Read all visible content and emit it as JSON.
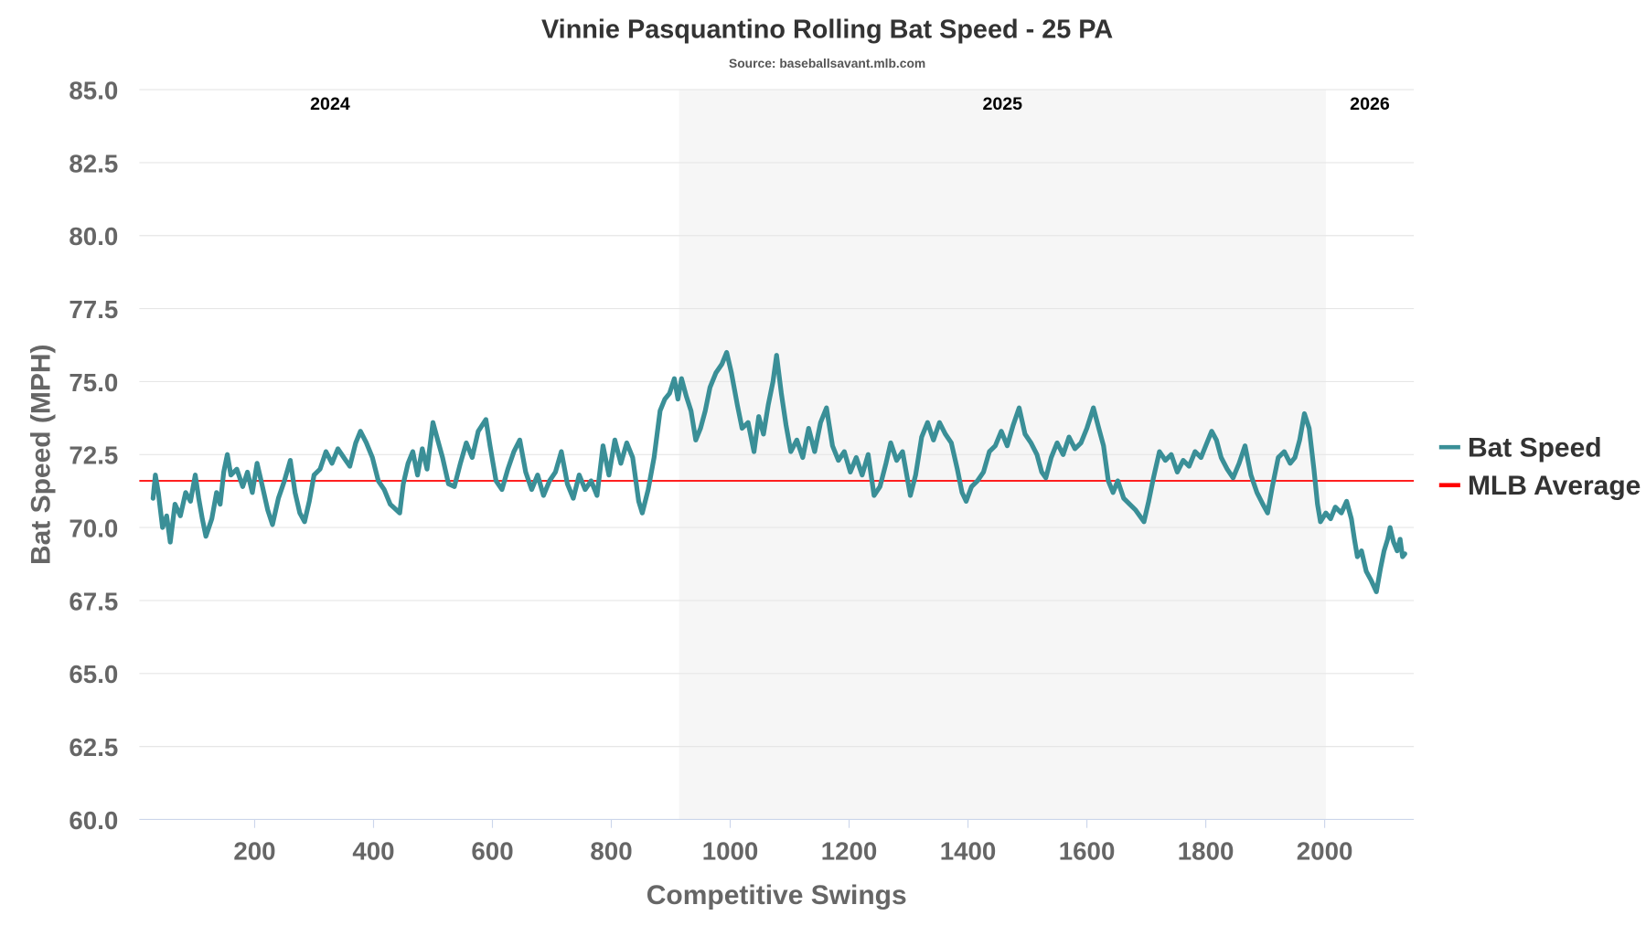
{
  "chart_data": {
    "type": "line",
    "title": "Vinnie Pasquantino Rolling Bat Speed - 25 PA",
    "subtitle": "Source: baseballsavant.mlb.com",
    "xlabel": "Competitive Swings",
    "ylabel": "Bat Speed (MPH)",
    "xlim": [
      6,
      2150
    ],
    "ylim": [
      60,
      85
    ],
    "xticks": [
      200,
      400,
      600,
      800,
      1000,
      1200,
      1400,
      1600,
      1800,
      2000
    ],
    "yticks": [
      "60.0",
      "62.5",
      "65.0",
      "67.5",
      "70.0",
      "72.5",
      "75.0",
      "77.5",
      "80.0",
      "82.5",
      "85.0"
    ],
    "grid": true,
    "legend_position": "right",
    "seasons": [
      {
        "label": "2024",
        "start": 6,
        "end": 914,
        "shaded": false
      },
      {
        "label": "2025",
        "start": 914,
        "end": 2002,
        "shaded": true
      },
      {
        "label": "2026",
        "start": 2002,
        "end": 2150,
        "shaded": false
      }
    ],
    "reference_line": {
      "name": "MLB Average",
      "value": 71.6,
      "color": "#ff0000"
    },
    "series": [
      {
        "name": "Bat Speed",
        "color": "#3a8f97",
        "points": [
          [
            29,
            71.0
          ],
          [
            33,
            71.8
          ],
          [
            38,
            71.2
          ],
          [
            45,
            70.0
          ],
          [
            52,
            70.4
          ],
          [
            58,
            69.5
          ],
          [
            66,
            70.8
          ],
          [
            75,
            70.4
          ],
          [
            84,
            71.2
          ],
          [
            92,
            70.9
          ],
          [
            100,
            71.8
          ],
          [
            106,
            71.0
          ],
          [
            112,
            70.3
          ],
          [
            118,
            69.7
          ],
          [
            128,
            70.3
          ],
          [
            136,
            71.2
          ],
          [
            142,
            70.8
          ],
          [
            148,
            71.9
          ],
          [
            154,
            72.5
          ],
          [
            160,
            71.8
          ],
          [
            170,
            72.0
          ],
          [
            180,
            71.4
          ],
          [
            188,
            71.9
          ],
          [
            196,
            71.2
          ],
          [
            204,
            72.2
          ],
          [
            212,
            71.5
          ],
          [
            222,
            70.6
          ],
          [
            230,
            70.1
          ],
          [
            240,
            71.0
          ],
          [
            250,
            71.6
          ],
          [
            260,
            72.3
          ],
          [
            268,
            71.2
          ],
          [
            276,
            70.5
          ],
          [
            284,
            70.2
          ],
          [
            292,
            70.9
          ],
          [
            300,
            71.8
          ],
          [
            310,
            72.0
          ],
          [
            320,
            72.6
          ],
          [
            330,
            72.2
          ],
          [
            340,
            72.7
          ],
          [
            350,
            72.4
          ],
          [
            360,
            72.1
          ],
          [
            370,
            72.9
          ],
          [
            378,
            73.3
          ],
          [
            388,
            72.9
          ],
          [
            398,
            72.4
          ],
          [
            408,
            71.6
          ],
          [
            418,
            71.3
          ],
          [
            428,
            70.8
          ],
          [
            444,
            70.5
          ],
          [
            450,
            71.5
          ],
          [
            458,
            72.2
          ],
          [
            466,
            72.6
          ],
          [
            474,
            71.8
          ],
          [
            482,
            72.7
          ],
          [
            490,
            72.0
          ],
          [
            500,
            73.6
          ],
          [
            508,
            73.0
          ],
          [
            516,
            72.4
          ],
          [
            526,
            71.5
          ],
          [
            536,
            71.4
          ],
          [
            546,
            72.2
          ],
          [
            556,
            72.9
          ],
          [
            566,
            72.4
          ],
          [
            576,
            73.3
          ],
          [
            589,
            73.7
          ],
          [
            596,
            72.8
          ],
          [
            606,
            71.6
          ],
          [
            616,
            71.3
          ],
          [
            626,
            72.0
          ],
          [
            636,
            72.6
          ],
          [
            646,
            73.0
          ],
          [
            656,
            71.9
          ],
          [
            666,
            71.3
          ],
          [
            676,
            71.8
          ],
          [
            686,
            71.1
          ],
          [
            696,
            71.6
          ],
          [
            706,
            71.9
          ],
          [
            716,
            72.6
          ],
          [
            726,
            71.5
          ],
          [
            736,
            71.0
          ],
          [
            746,
            71.8
          ],
          [
            756,
            71.3
          ],
          [
            766,
            71.6
          ],
          [
            776,
            71.1
          ],
          [
            786,
            72.8
          ],
          [
            796,
            71.8
          ],
          [
            806,
            73.0
          ],
          [
            816,
            72.2
          ],
          [
            826,
            72.9
          ],
          [
            836,
            72.4
          ],
          [
            846,
            70.9
          ],
          [
            852,
            70.5
          ],
          [
            862,
            71.3
          ],
          [
            872,
            72.4
          ],
          [
            882,
            74.0
          ],
          [
            890,
            74.4
          ],
          [
            898,
            74.6
          ],
          [
            906,
            75.1
          ],
          [
            912,
            74.4
          ],
          [
            918,
            75.1
          ],
          [
            926,
            74.5
          ],
          [
            934,
            74.0
          ],
          [
            942,
            73.0
          ],
          [
            950,
            73.4
          ],
          [
            958,
            74.0
          ],
          [
            966,
            74.8
          ],
          [
            976,
            75.3
          ],
          [
            986,
            75.6
          ],
          [
            994,
            76.0
          ],
          [
            1002,
            75.3
          ],
          [
            1012,
            74.2
          ],
          [
            1020,
            73.4
          ],
          [
            1030,
            73.6
          ],
          [
            1040,
            72.6
          ],
          [
            1048,
            73.8
          ],
          [
            1056,
            73.2
          ],
          [
            1064,
            74.2
          ],
          [
            1072,
            75.0
          ],
          [
            1078,
            75.9
          ],
          [
            1086,
            74.6
          ],
          [
            1094,
            73.5
          ],
          [
            1102,
            72.6
          ],
          [
            1112,
            73.0
          ],
          [
            1122,
            72.4
          ],
          [
            1132,
            73.4
          ],
          [
            1142,
            72.6
          ],
          [
            1152,
            73.6
          ],
          [
            1162,
            74.1
          ],
          [
            1172,
            72.8
          ],
          [
            1182,
            72.3
          ],
          [
            1192,
            72.6
          ],
          [
            1202,
            71.9
          ],
          [
            1212,
            72.4
          ],
          [
            1222,
            71.8
          ],
          [
            1232,
            72.5
          ],
          [
            1242,
            71.1
          ],
          [
            1252,
            71.4
          ],
          [
            1262,
            72.2
          ],
          [
            1270,
            72.9
          ],
          [
            1280,
            72.3
          ],
          [
            1290,
            72.6
          ],
          [
            1303,
            71.1
          ],
          [
            1312,
            71.8
          ],
          [
            1322,
            73.1
          ],
          [
            1332,
            73.6
          ],
          [
            1342,
            73.0
          ],
          [
            1352,
            73.6
          ],
          [
            1362,
            73.2
          ],
          [
            1372,
            72.9
          ],
          [
            1382,
            72.0
          ],
          [
            1390,
            71.2
          ],
          [
            1397,
            70.9
          ],
          [
            1406,
            71.4
          ],
          [
            1416,
            71.6
          ],
          [
            1426,
            71.9
          ],
          [
            1436,
            72.6
          ],
          [
            1446,
            72.8
          ],
          [
            1456,
            73.3
          ],
          [
            1466,
            72.8
          ],
          [
            1476,
            73.5
          ],
          [
            1486,
            74.1
          ],
          [
            1496,
            73.2
          ],
          [
            1506,
            72.9
          ],
          [
            1516,
            72.5
          ],
          [
            1524,
            71.9
          ],
          [
            1531,
            71.7
          ],
          [
            1540,
            72.4
          ],
          [
            1550,
            72.9
          ],
          [
            1560,
            72.5
          ],
          [
            1570,
            73.1
          ],
          [
            1580,
            72.7
          ],
          [
            1590,
            72.9
          ],
          [
            1600,
            73.4
          ],
          [
            1611,
            74.1
          ],
          [
            1620,
            73.4
          ],
          [
            1628,
            72.8
          ],
          [
            1636,
            71.6
          ],
          [
            1644,
            71.2
          ],
          [
            1652,
            71.6
          ],
          [
            1662,
            71.0
          ],
          [
            1672,
            70.8
          ],
          [
            1682,
            70.6
          ],
          [
            1696,
            70.2
          ],
          [
            1704,
            70.9
          ],
          [
            1712,
            71.7
          ],
          [
            1722,
            72.6
          ],
          [
            1732,
            72.3
          ],
          [
            1742,
            72.5
          ],
          [
            1752,
            71.9
          ],
          [
            1762,
            72.3
          ],
          [
            1772,
            72.1
          ],
          [
            1782,
            72.6
          ],
          [
            1792,
            72.4
          ],
          [
            1802,
            72.9
          ],
          [
            1810,
            73.3
          ],
          [
            1818,
            73.0
          ],
          [
            1826,
            72.4
          ],
          [
            1836,
            72.0
          ],
          [
            1846,
            71.7
          ],
          [
            1856,
            72.2
          ],
          [
            1866,
            72.8
          ],
          [
            1876,
            71.8
          ],
          [
            1886,
            71.2
          ],
          [
            1896,
            70.8
          ],
          [
            1904,
            70.5
          ],
          [
            1912,
            71.4
          ],
          [
            1922,
            72.4
          ],
          [
            1932,
            72.6
          ],
          [
            1942,
            72.2
          ],
          [
            1950,
            72.4
          ],
          [
            1958,
            73.0
          ],
          [
            1966,
            73.9
          ],
          [
            1974,
            73.4
          ],
          [
            1982,
            72.0
          ],
          [
            1988,
            70.8
          ],
          [
            1993,
            70.2
          ],
          [
            2002,
            70.5
          ],
          [
            2010,
            70.3
          ],
          [
            2018,
            70.7
          ],
          [
            2028,
            70.5
          ],
          [
            2037,
            70.9
          ],
          [
            2045,
            70.3
          ],
          [
            2050,
            69.6
          ],
          [
            2055,
            69.0
          ],
          [
            2062,
            69.2
          ],
          [
            2070,
            68.5
          ],
          [
            2078,
            68.2
          ],
          [
            2087,
            67.8
          ],
          [
            2094,
            68.6
          ],
          [
            2100,
            69.2
          ],
          [
            2106,
            69.6
          ],
          [
            2110,
            70.0
          ],
          [
            2116,
            69.5
          ],
          [
            2122,
            69.2
          ],
          [
            2127,
            69.6
          ],
          [
            2131,
            69.0
          ],
          [
            2135,
            69.1
          ]
        ]
      }
    ],
    "legend": [
      {
        "label": "Bat Speed",
        "color": "#3a8f97"
      },
      {
        "label": "MLB Average",
        "color": "#ff0000"
      }
    ]
  }
}
